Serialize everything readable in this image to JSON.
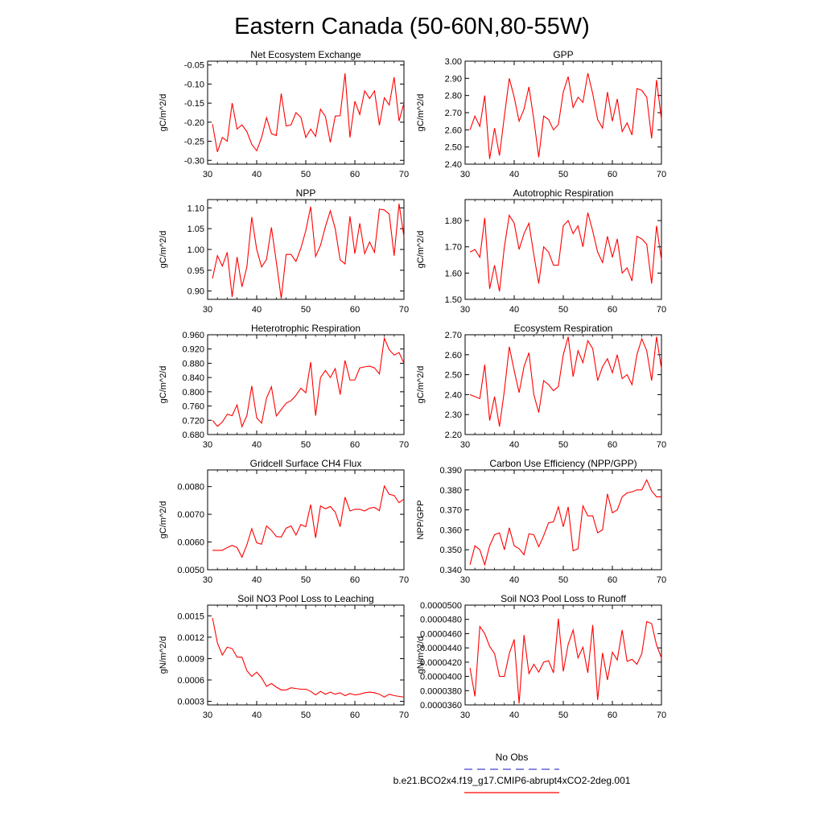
{
  "title": "Eastern Canada (50-60N,80-55W)",
  "legend": {
    "obs_label": "No Obs",
    "obs_color": "#4444cc",
    "case_label": "b.e21.BCO2x4.f19_g17.CMIP6-abrupt4xCO2-2deg.001",
    "case_color": "#ff0000"
  },
  "chart_data": [
    {
      "type": "line",
      "title": "Net Ecosystem Exchange",
      "ylabel": "gC/m^2/d",
      "xlim": [
        30,
        70
      ],
      "ylim": [
        -0.31,
        -0.04
      ],
      "yticks": [
        "-0.30",
        "-0.25",
        "-0.20",
        "-0.15",
        "-0.10",
        "-0.05"
      ],
      "xticks": [
        "30",
        "40",
        "50",
        "60",
        "70"
      ],
      "series": [
        {
          "values": [
            -0.205,
            -0.278,
            -0.24,
            -0.25,
            -0.15,
            -0.218,
            -0.207,
            -0.225,
            -0.258,
            -0.275,
            -0.24,
            -0.188,
            -0.23,
            -0.235,
            -0.125,
            -0.21,
            -0.207,
            -0.175,
            -0.187,
            -0.24,
            -0.218,
            -0.237,
            -0.166,
            -0.185,
            -0.253,
            -0.184,
            -0.183,
            -0.072,
            -0.24,
            -0.145,
            -0.18,
            -0.118,
            -0.138,
            -0.118,
            -0.208,
            -0.136,
            -0.155,
            -0.082,
            -0.197,
            -0.15
          ]
        }
      ]
    },
    {
      "type": "line",
      "title": "GPP",
      "ylabel": "gC/m^2/d",
      "xlim": [
        30,
        70
      ],
      "ylim": [
        2.4,
        3.0
      ],
      "yticks": [
        "2.40",
        "2.50",
        "2.60",
        "2.70",
        "2.80",
        "2.90",
        "3.00"
      ],
      "xticks": [
        "30",
        "40",
        "50",
        "60",
        "70"
      ],
      "series": [
        {
          "values": [
            2.6,
            2.68,
            2.62,
            2.8,
            2.43,
            2.61,
            2.45,
            2.68,
            2.9,
            2.79,
            2.65,
            2.72,
            2.85,
            2.66,
            2.44,
            2.68,
            2.66,
            2.6,
            2.63,
            2.82,
            2.91,
            2.73,
            2.79,
            2.76,
            2.93,
            2.81,
            2.66,
            2.61,
            2.82,
            2.65,
            2.78,
            2.59,
            2.64,
            2.57,
            2.84,
            2.83,
            2.79,
            2.55,
            2.89,
            2.66
          ]
        }
      ]
    },
    {
      "type": "line",
      "title": "NPP",
      "ylabel": "gC/m^2/d",
      "xlim": [
        30,
        70
      ],
      "ylim": [
        0.88,
        1.12
      ],
      "yticks": [
        "0.90",
        "0.95",
        "1.00",
        "1.05",
        "1.10"
      ],
      "xticks": [
        "30",
        "40",
        "50",
        "60",
        "70"
      ],
      "series": [
        {
          "values": [
            0.93,
            0.985,
            0.96,
            0.993,
            0.886,
            0.982,
            0.91,
            0.958,
            1.078,
            1.0,
            0.958,
            0.976,
            1.053,
            0.97,
            0.882,
            0.988,
            0.988,
            0.971,
            1.003,
            1.045,
            1.103,
            0.983,
            1.01,
            1.055,
            1.093,
            1.05,
            0.975,
            0.965,
            1.08,
            0.99,
            1.063,
            0.99,
            1.018,
            0.993,
            1.097,
            1.095,
            1.085,
            0.985,
            1.11,
            1.03
          ]
        }
      ]
    },
    {
      "type": "line",
      "title": "Autotrophic Respiration",
      "ylabel": "gC/m^2/d",
      "xlim": [
        30,
        70
      ],
      "ylim": [
        1.5,
        1.88
      ],
      "yticks": [
        "1.50",
        "1.60",
        "1.70",
        "1.80"
      ],
      "xticks": [
        "30",
        "40",
        "50",
        "60",
        "70"
      ],
      "series": [
        {
          "values": [
            1.68,
            1.69,
            1.66,
            1.81,
            1.54,
            1.63,
            1.53,
            1.7,
            1.82,
            1.79,
            1.69,
            1.75,
            1.79,
            1.67,
            1.56,
            1.7,
            1.68,
            1.63,
            1.63,
            1.78,
            1.8,
            1.75,
            1.78,
            1.7,
            1.83,
            1.76,
            1.68,
            1.64,
            1.74,
            1.66,
            1.73,
            1.6,
            1.62,
            1.57,
            1.74,
            1.73,
            1.71,
            1.56,
            1.78,
            1.65
          ]
        }
      ]
    },
    {
      "type": "line",
      "title": "Heterotrophic Respiration",
      "ylabel": "gC/m^2/d",
      "xlim": [
        30,
        70
      ],
      "ylim": [
        0.68,
        0.96
      ],
      "yticks": [
        "0.680",
        "0.720",
        "0.760",
        "0.800",
        "0.840",
        "0.880",
        "0.920",
        "0.960"
      ],
      "xticks": [
        "30",
        "40",
        "50",
        "60",
        "70"
      ],
      "series": [
        {
          "values": [
            0.72,
            0.703,
            0.715,
            0.737,
            0.733,
            0.763,
            0.702,
            0.733,
            0.816,
            0.727,
            0.712,
            0.782,
            0.814,
            0.732,
            0.75,
            0.768,
            0.775,
            0.79,
            0.81,
            0.797,
            0.883,
            0.733,
            0.84,
            0.86,
            0.84,
            0.865,
            0.792,
            0.888,
            0.833,
            0.833,
            0.867,
            0.87,
            0.872,
            0.867,
            0.85,
            0.95,
            0.918,
            0.903,
            0.91,
            0.88
          ]
        }
      ]
    },
    {
      "type": "line",
      "title": "Ecosystem Respiration",
      "ylabel": "gC/m^2/d",
      "xlim": [
        30,
        70
      ],
      "ylim": [
        2.2,
        2.7
      ],
      "yticks": [
        "2.20",
        "2.30",
        "2.40",
        "2.50",
        "2.60",
        "2.70"
      ],
      "xticks": [
        "30",
        "40",
        "50",
        "60",
        "70"
      ],
      "series": [
        {
          "values": [
            2.4,
            2.39,
            2.38,
            2.55,
            2.27,
            2.39,
            2.24,
            2.42,
            2.64,
            2.52,
            2.41,
            2.54,
            2.61,
            2.4,
            2.31,
            2.47,
            2.45,
            2.42,
            2.44,
            2.6,
            2.69,
            2.49,
            2.62,
            2.56,
            2.67,
            2.63,
            2.47,
            2.54,
            2.58,
            2.51,
            2.6,
            2.48,
            2.5,
            2.45,
            2.6,
            2.68,
            2.62,
            2.47,
            2.69,
            2.53
          ]
        }
      ]
    },
    {
      "type": "line",
      "title": "Gridcell Surface CH4 Flux",
      "ylabel": "gC/m^2/d",
      "xlim": [
        30,
        70
      ],
      "ylim": [
        0.005,
        0.0086
      ],
      "yticks": [
        "0.0050",
        "0.0060",
        "0.0070",
        "0.0080"
      ],
      "xticks": [
        "30",
        "40",
        "50",
        "60",
        "70"
      ],
      "series": [
        {
          "values": [
            0.0057,
            0.0057,
            0.0057,
            0.0058,
            0.00588,
            0.0058,
            0.00545,
            0.0059,
            0.00648,
            0.00597,
            0.00592,
            0.00658,
            0.00642,
            0.0062,
            0.00618,
            0.0065,
            0.00658,
            0.00625,
            0.00663,
            0.00655,
            0.00735,
            0.00615,
            0.0073,
            0.0072,
            0.00728,
            0.00708,
            0.00655,
            0.00762,
            0.00712,
            0.00718,
            0.00718,
            0.00712,
            0.00722,
            0.00725,
            0.00713,
            0.00802,
            0.00772,
            0.00768,
            0.00742,
            0.00755
          ]
        }
      ]
    },
    {
      "type": "line",
      "title": "Carbon Use Efficiency (NPP/GPP)",
      "ylabel": "NPP/GPP",
      "xlim": [
        30,
        70
      ],
      "ylim": [
        0.34,
        0.39
      ],
      "yticks": [
        "0.340",
        "0.350",
        "0.360",
        "0.370",
        "0.380",
        "0.390"
      ],
      "xticks": [
        "30",
        "40",
        "50",
        "60",
        "70"
      ],
      "series": [
        {
          "values": [
            0.3425,
            0.352,
            0.35,
            0.3425,
            0.352,
            0.3575,
            0.3585,
            0.35,
            0.361,
            0.352,
            0.3505,
            0.3475,
            0.358,
            0.3575,
            0.3515,
            0.357,
            0.3635,
            0.364,
            0.3715,
            0.3615,
            0.3715,
            0.3495,
            0.3505,
            0.372,
            0.367,
            0.367,
            0.3585,
            0.36,
            0.378,
            0.3685,
            0.37,
            0.3765,
            0.3785,
            0.379,
            0.38,
            0.38,
            0.385,
            0.3795,
            0.3765,
            0.3765
          ]
        }
      ]
    },
    {
      "type": "line",
      "title": "Soil NO3 Pool Loss to Leaching",
      "ylabel": "gN/m^2/d",
      "xlim": [
        30,
        70
      ],
      "ylim": [
        0.00025,
        0.00165
      ],
      "yticks": [
        "0.0003",
        "0.0006",
        "0.0009",
        "0.0012",
        "0.0015"
      ],
      "xticks": [
        "30",
        "40",
        "50",
        "60",
        "70"
      ],
      "series": [
        {
          "values": [
            0.00147,
            0.00112,
            0.00095,
            0.00106,
            0.00104,
            0.00092,
            0.00092,
            0.00073,
            0.00065,
            0.00071,
            0.00063,
            0.00051,
            0.00055,
            0.0005,
            0.00046,
            0.00046,
            0.00049,
            0.00048,
            0.00047,
            0.00047,
            0.00044,
            0.00039,
            0.00044,
            0.0004,
            0.00043,
            0.0004,
            0.00042,
            0.00038,
            0.00041,
            0.00039,
            0.0004,
            0.00042,
            0.00043,
            0.00042,
            0.0004,
            0.00036,
            0.0004,
            0.00038,
            0.00037,
            0.00036
          ]
        }
      ]
    },
    {
      "type": "line",
      "title": "Soil NO3 Pool Loss to Runoff",
      "ylabel": "gN/m^2/d",
      "xlim": [
        30,
        70
      ],
      "ylim": [
        3.6e-05,
        5e-05
      ],
      "yticks": [
        "0.0000360",
        "0.0000380",
        "0.0000400",
        "0.0000420",
        "0.0000440",
        "0.0000460",
        "0.0000480",
        "0.0000500"
      ],
      "xticks": [
        "30",
        "40",
        "50",
        "60",
        "70"
      ],
      "series": [
        {
          "values": [
            4.12e-05,
            3.72e-05,
            4.7e-05,
            4.6e-05,
            4.42e-05,
            4.32e-05,
            4e-05,
            4e-05,
            4.32e-05,
            4.52e-05,
            3.62e-05,
            4.58e-05,
            4.04e-05,
            4.17e-05,
            4.06e-05,
            4.2e-05,
            4.22e-05,
            4.05e-05,
            4.81e-05,
            4.07e-05,
            4.45e-05,
            4.65e-05,
            4.26e-05,
            4.41e-05,
            4.05e-05,
            4.72e-05,
            3.67e-05,
            4.33e-05,
            3.95e-05,
            4.34e-05,
            4.23e-05,
            4.65e-05,
            4.21e-05,
            4.24e-05,
            4.17e-05,
            4.32e-05,
            4.77e-05,
            4.74e-05,
            4.44e-05,
            4.26e-05
          ]
        }
      ]
    }
  ]
}
